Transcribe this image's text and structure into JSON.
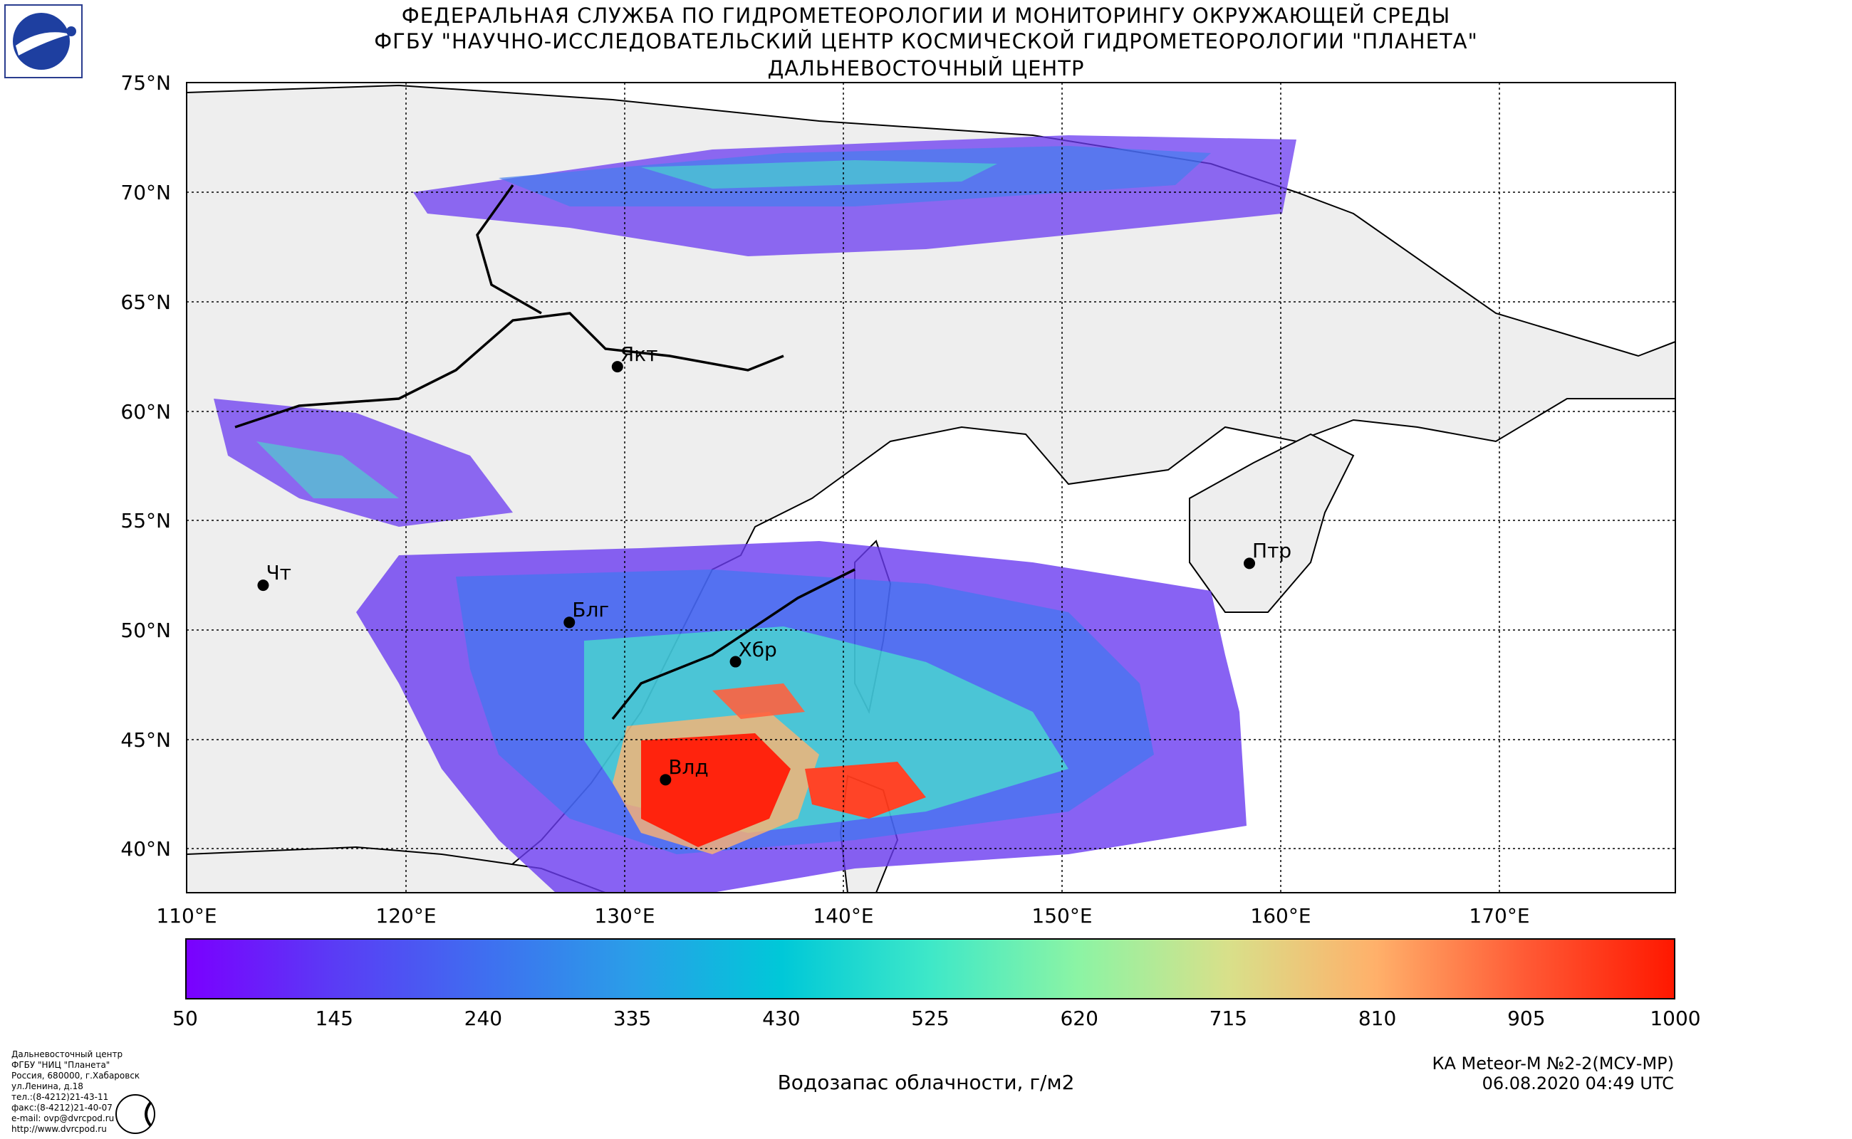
{
  "header": {
    "line1": "ФЕДЕРАЛЬНАЯ СЛУЖБА ПО ГИДРОМЕТЕОРОЛОГИИ И МОНИТОРИНГУ ОКРУЖАЮЩЕЙ СРЕДЫ",
    "line2": "ФГБУ \"НАУЧНО-ИССЛЕДОВАТЕЛЬСКИЙ ЦЕНТР КОСМИЧЕСКОЙ ГИДРОМЕТЕОРОЛОГИИ \"ПЛАНЕТА\"",
    "line3": "ДАЛЬНЕВОСТОЧНЫЙ ЦЕНТР"
  },
  "map": {
    "lat_labels": [
      "75°N",
      "70°N",
      "65°N",
      "60°N",
      "55°N",
      "50°N",
      "45°N",
      "40°N"
    ],
    "lon_labels": [
      "110°E",
      "120°E",
      "130°E",
      "140°E",
      "150°E",
      "160°E",
      "170°E"
    ],
    "cities": [
      {
        "name": "Якт",
        "label": "Якт",
        "lon": 129.7,
        "lat": 62.0
      },
      {
        "name": "Чт",
        "label": "Чт",
        "lon": 113.5,
        "lat": 52.0
      },
      {
        "name": "Блг",
        "label": "Блг",
        "lon": 127.5,
        "lat": 50.3
      },
      {
        "name": "Хбр",
        "label": "Хбр",
        "lon": 135.1,
        "lat": 48.5
      },
      {
        "name": "Влд",
        "label": "Влд",
        "lon": 131.9,
        "lat": 43.1
      },
      {
        "name": "Птр",
        "label": "Птр",
        "lon": 158.6,
        "lat": 53.0
      }
    ]
  },
  "colorbar": {
    "ticks": [
      "50",
      "145",
      "240",
      "335",
      "430",
      "525",
      "620",
      "715",
      "810",
      "905",
      "1000"
    ],
    "label": "Водозапас облачности, г/м2",
    "colors": [
      "#7a00ff",
      "#5a3cf5",
      "#3f6ef0",
      "#2a9ee8",
      "#00c8d8",
      "#3ee8c8",
      "#8cf4a4",
      "#d8e08a",
      "#ffb06a",
      "#ff5a35",
      "#ff1800"
    ]
  },
  "footer": {
    "satellite": "КА Meteor-M №2-2(МСУ-МР)",
    "datetime": "06.08.2020 04:49 UTC",
    "address": [
      "Дальневосточный центр",
      "ФГБУ \"НИЦ \"Планета\"",
      "Россия, 680000, г.Хабаровск",
      "ул.Ленина, д.18",
      "тел.:(8-4212)21-43-11",
      "факс:(8-4212)21-40-07",
      "e-mail: ovp@dvrcpod.ru",
      "http://www.dvrcpod.ru"
    ]
  }
}
